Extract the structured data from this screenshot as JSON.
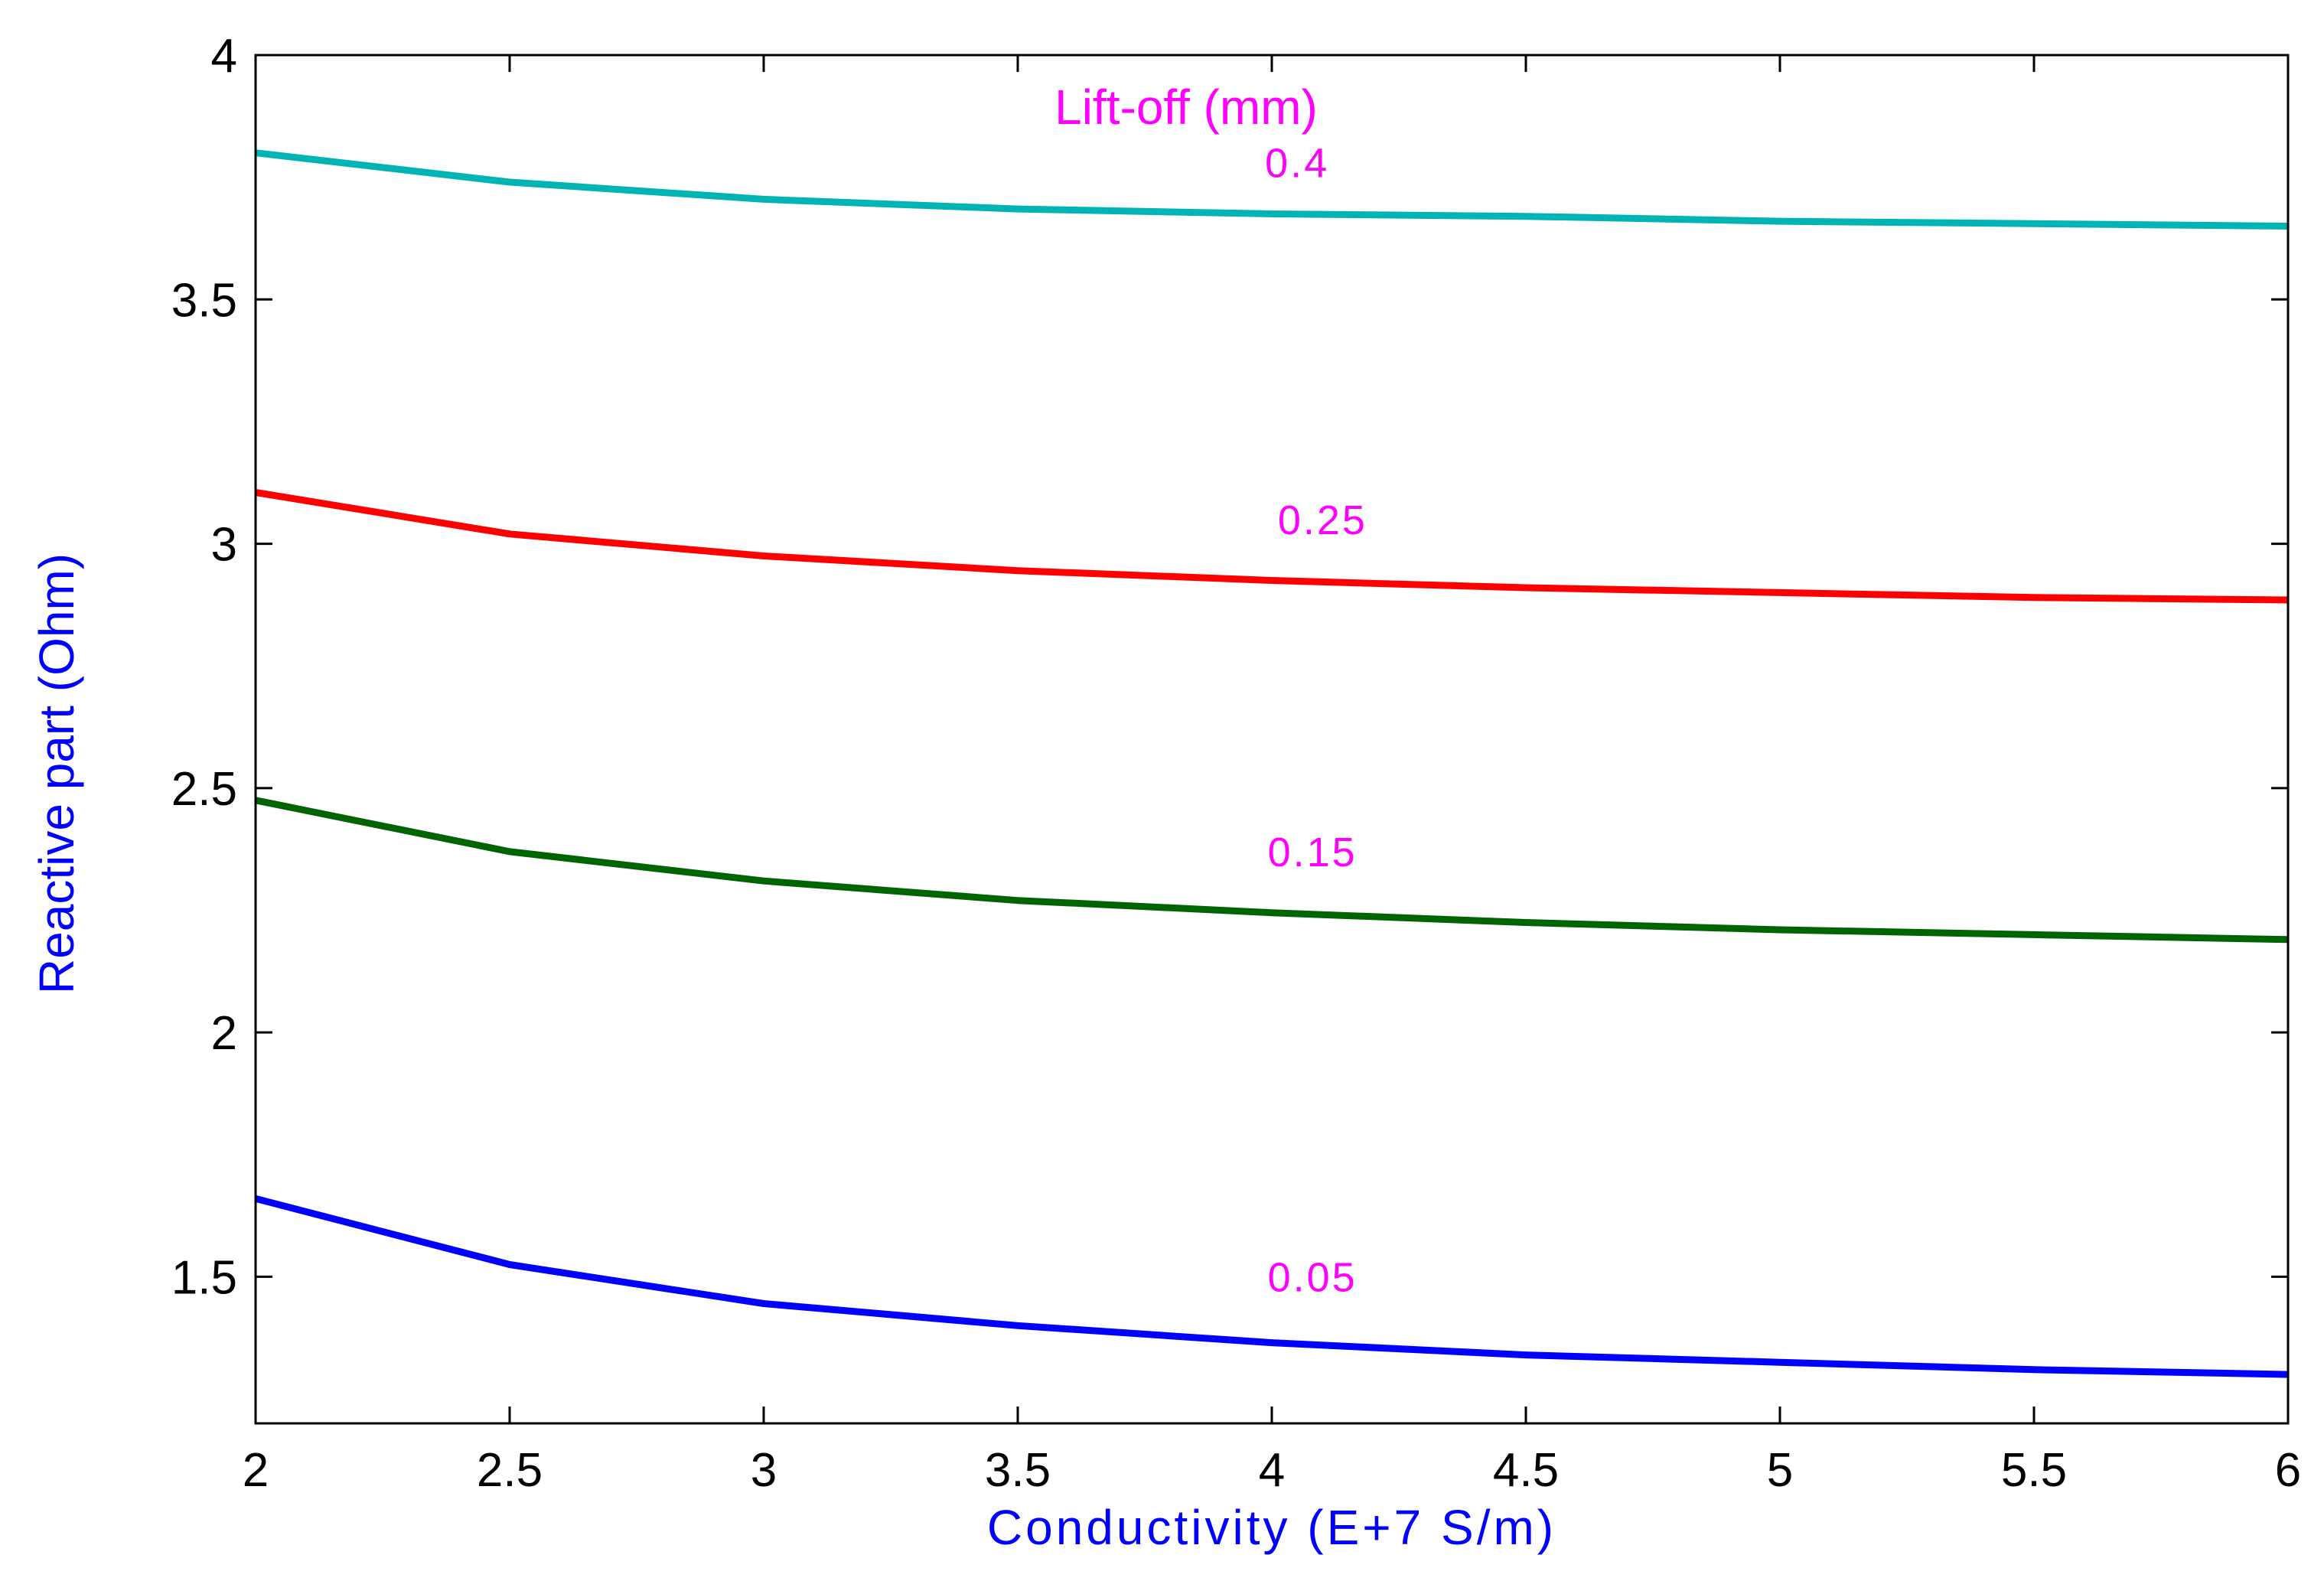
{
  "chart_data": {
    "type": "line",
    "title": "",
    "xlabel": "Conductivity (E+7 S/m)",
    "ylabel": "Reactive part (Ohm)",
    "xlim": [
      2,
      6
    ],
    "ylim": [
      1.2,
      4
    ],
    "grid": false,
    "x": [
      2,
      2.5,
      3,
      3.5,
      4,
      4.5,
      5,
      5.5,
      6
    ],
    "xticks": [
      2,
      2.5,
      3,
      3.5,
      4,
      4.5,
      5,
      5.5,
      6
    ],
    "xtick_labels": [
      "2",
      "2.5",
      "3",
      "3.5",
      "4",
      "4.5",
      "5",
      "5.5",
      "6"
    ],
    "yticks": [
      1.5,
      2,
      2.5,
      3,
      3.5,
      4
    ],
    "ytick_labels": [
      "1.5",
      "2",
      "2.5",
      "3",
      "3.5",
      "4"
    ],
    "legend_title": "Lift-off (mm)",
    "series": [
      {
        "name": "0.4",
        "color": "#00b4b4",
        "label_at": {
          "x": 4.05,
          "y": 3.75
        },
        "values": [
          3.8,
          3.74,
          3.705,
          3.685,
          3.675,
          3.67,
          3.66,
          3.655,
          3.65
        ]
      },
      {
        "name": "0.25",
        "color": "#ff0000",
        "label_at": {
          "x": 4.1,
          "y": 3.02
        },
        "values": [
          3.105,
          3.02,
          2.975,
          2.945,
          2.925,
          2.91,
          2.9,
          2.89,
          2.885
        ]
      },
      {
        "name": "0.15",
        "color": "#006400",
        "label_at": {
          "x": 4.08,
          "y": 2.34
        },
        "values": [
          2.475,
          2.37,
          2.31,
          2.27,
          2.245,
          2.225,
          2.21,
          2.2,
          2.19
        ]
      },
      {
        "name": "0.05",
        "color": "#0000ff",
        "label_at": {
          "x": 4.08,
          "y": 1.47
        },
        "values": [
          1.66,
          1.525,
          1.445,
          1.4,
          1.365,
          1.34,
          1.325,
          1.31,
          1.3
        ]
      }
    ],
    "colors": {
      "annotation": "#ff00ff",
      "axis_title": "#0000ff",
      "axes": "#000000"
    }
  }
}
